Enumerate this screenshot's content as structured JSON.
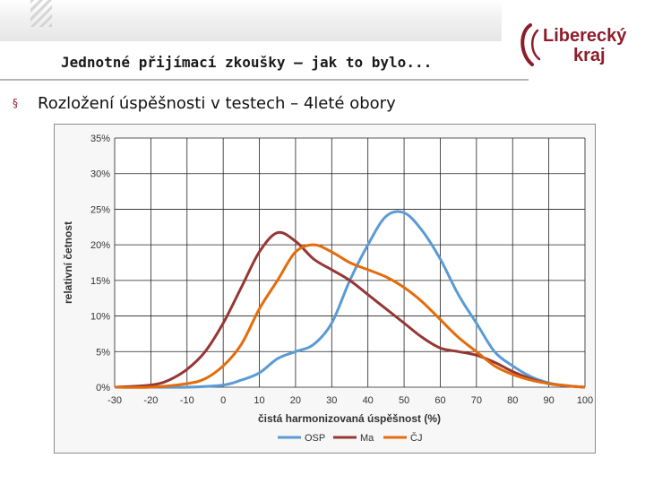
{
  "slide": {
    "title": "Jednotné přijímací zkoušky – jak to bylo...",
    "bullet": "Rozložení úspěšnosti v testech – 4leté obory",
    "bullet_marker": "§"
  },
  "logo": {
    "line1": "Liberecký",
    "line2": "kraj",
    "color": "#8b1d2c"
  },
  "chart_data": {
    "type": "line",
    "title": "",
    "xlabel": "čistá harmonizovaná úspěšnost (%)",
    "ylabel": "relativní četnost",
    "xlim": [
      -30,
      100
    ],
    "ylim": [
      0,
      35
    ],
    "x_ticks": [
      -30,
      -20,
      -10,
      0,
      10,
      20,
      30,
      40,
      50,
      60,
      70,
      80,
      90,
      100
    ],
    "y_ticks": [
      0,
      5,
      10,
      15,
      20,
      25,
      30,
      35
    ],
    "y_tick_labels": [
      "0%",
      "5%",
      "10%",
      "15%",
      "20%",
      "25%",
      "30%",
      "35%"
    ],
    "grid": true,
    "legend": "bottom",
    "series": [
      {
        "name": "OSP",
        "color": "#5b9bd5",
        "x": [
          -30,
          -20,
          -10,
          0,
          5,
          10,
          15,
          20,
          25,
          30,
          35,
          40,
          45,
          50,
          55,
          60,
          65,
          70,
          75,
          80,
          85,
          90,
          95,
          100
        ],
        "values": [
          0,
          0,
          0,
          0.3,
          1,
          2,
          4,
          5,
          6,
          9,
          15,
          20,
          24,
          24.5,
          22,
          18,
          13,
          9,
          5,
          3,
          1.5,
          0.6,
          0.2,
          0
        ]
      },
      {
        "name": "Ma",
        "color": "#953735",
        "x": [
          -30,
          -20,
          -15,
          -10,
          -5,
          0,
          5,
          10,
          15,
          20,
          25,
          30,
          35,
          40,
          45,
          50,
          55,
          60,
          65,
          70,
          75,
          80,
          85,
          90,
          95,
          100
        ],
        "values": [
          0,
          0.3,
          1,
          2.5,
          5,
          9,
          14,
          19,
          21.7,
          20.5,
          18,
          16.5,
          15,
          13,
          11,
          9,
          7,
          5.5,
          5,
          4.5,
          3.5,
          2.2,
          1.2,
          0.5,
          0.2,
          0
        ]
      },
      {
        "name": "ČJ",
        "color": "#e46c0a",
        "x": [
          -30,
          -20,
          -10,
          -5,
          0,
          5,
          10,
          15,
          20,
          25,
          30,
          35,
          40,
          45,
          50,
          55,
          60,
          65,
          70,
          75,
          80,
          85,
          90,
          95,
          100
        ],
        "values": [
          0,
          0,
          0.5,
          1.2,
          3,
          6,
          11,
          15,
          19,
          20,
          19,
          17.5,
          16.5,
          15.5,
          14,
          12,
          9.5,
          7,
          5,
          3,
          1.8,
          1,
          0.5,
          0.2,
          0
        ]
      }
    ]
  }
}
